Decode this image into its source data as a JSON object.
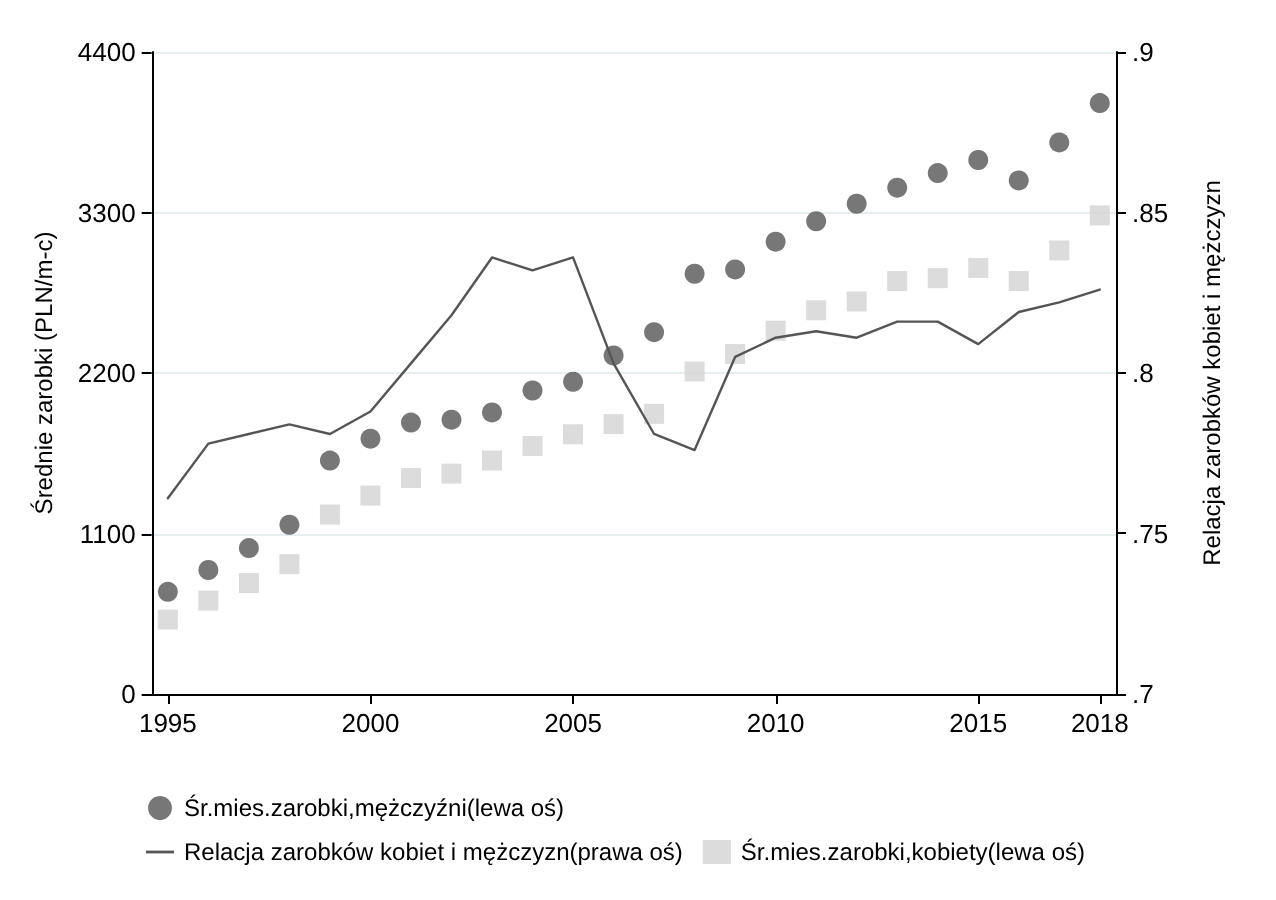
{
  "chart_data": {
    "type": "scatter",
    "ylabel": "Średnie zarobki (PLN/m-c)",
    "y2label": "Relacja zarobków kobiet i mężczyzn",
    "x": [
      1995,
      1996,
      1997,
      1998,
      1999,
      2000,
      2001,
      2002,
      2003,
      2004,
      2005,
      2006,
      2007,
      2008,
      2009,
      2010,
      2011,
      2012,
      2013,
      2014,
      2015,
      2016,
      2017,
      2018
    ],
    "series": [
      {
        "name": "Śr.mies.zarobki,mężczyźni(lewa oś)",
        "marker": "circle",
        "color": "#555555",
        "values": [
          700,
          850,
          1000,
          1160,
          1600,
          1750,
          1860,
          1880,
          1930,
          2080,
          2140,
          2320,
          2480,
          2880,
          2910,
          3100,
          3240,
          3360,
          3470,
          3570,
          3660,
          3520,
          3780,
          4050
        ]
      },
      {
        "name": "Relacja zarobków kobiet i mężczyzn(prawa oś)",
        "type": "line",
        "axis": "y2",
        "marker": "none",
        "color": "#555555",
        "values": [
          0.761,
          0.778,
          0.781,
          0.784,
          0.781,
          0.788,
          0.803,
          0.818,
          0.836,
          0.832,
          0.836,
          0.803,
          0.781,
          0.776,
          0.805,
          0.811,
          0.813,
          0.811,
          0.816,
          0.816,
          0.809,
          0.819,
          0.822,
          0.826
        ]
      },
      {
        "name": "Śr.mies.zarobki,kobiety(lewa oś)",
        "marker": "square",
        "color": "#d3d3d3",
        "values": [
          510,
          640,
          760,
          890,
          1230,
          1360,
          1480,
          1510,
          1600,
          1700,
          1780,
          1850,
          1920,
          2210,
          2330,
          2490,
          2630,
          2690,
          2830,
          2850,
          2920,
          2830,
          3040,
          3280
        ]
      }
    ],
    "xlim": [
      1994.6,
      2018.4
    ],
    "xticks": [
      1995,
      2000,
      2005,
      2010,
      2015,
      2018
    ],
    "ylim": [
      0,
      4400
    ],
    "yticks": [
      0,
      1100,
      2200,
      3300,
      4400
    ],
    "y2lim": [
      0.7,
      0.9
    ],
    "y2ticks": [
      {
        "value": 0.7,
        "label": ".7"
      },
      {
        "value": 0.75,
        "label": ".75"
      },
      {
        "value": 0.8,
        "label": ".8"
      },
      {
        "value": 0.85,
        "label": ".85"
      },
      {
        "value": 0.9,
        "label": ".9"
      }
    ],
    "grid": "y",
    "legend": "bottom",
    "line_style": "solid"
  }
}
